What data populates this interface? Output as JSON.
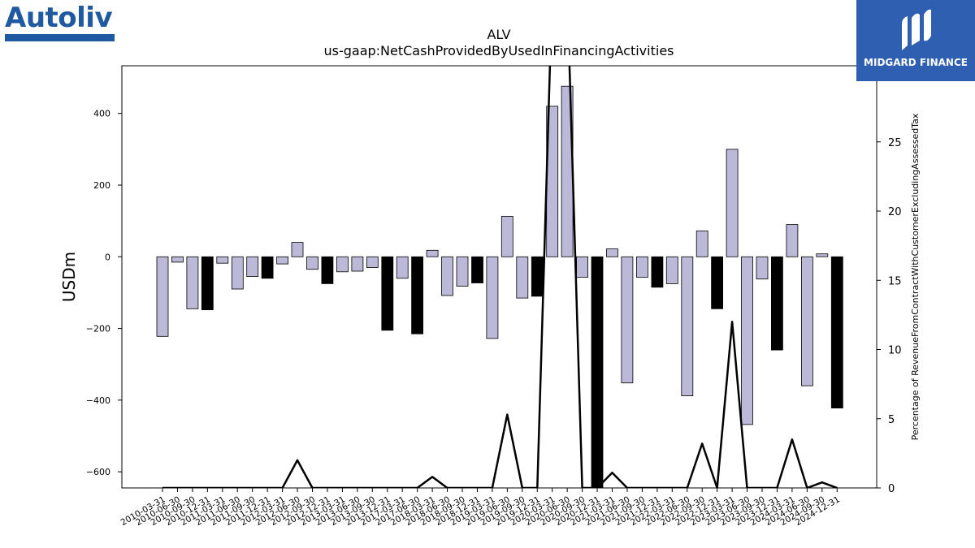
{
  "logos": {
    "left_text": "Autoliv",
    "right_text": "MIDGARD FINANCE",
    "left_color": "#1f5aa0",
    "right_bg": "#2f5fb0"
  },
  "chart_data": {
    "type": "bar",
    "title": "ALV",
    "subtitle": "us-gaap:NetCashProvidedByUsedInFinancingActivities",
    "ylabel": "USDm",
    "y2label": "Percentage of RevenueFromContractWithCustomerExcludingAssessedTax",
    "ylim": [
      -645,
      533
    ],
    "y2lim": [
      0,
      30.5
    ],
    "yticks": [
      -600,
      -400,
      -200,
      0,
      200,
      400
    ],
    "y2ticks": [
      0,
      5,
      10,
      15,
      20,
      25,
      30
    ],
    "colors": {
      "positive_quarter": "#bcb8d8",
      "q4": "#000000",
      "line": "#000000"
    },
    "categories": [
      "2010-03-31",
      "2010-06-30",
      "2010-09-30",
      "2010-12-31",
      "2011-03-31",
      "2011-06-30",
      "2011-09-30",
      "2011-12-31",
      "2012-03-31",
      "2012-06-30",
      "2012-09-30",
      "2012-12-31",
      "2013-03-31",
      "2013-06-30",
      "2013-09-30",
      "2013-12-31",
      "2017-03-31",
      "2017-06-30",
      "2018-03-31",
      "2018-06-30",
      "2018-09-30",
      "2018-12-31",
      "2019-03-31",
      "2019-06-30",
      "2019-09-30",
      "2019-12-31",
      "2020-03-31",
      "2020-06-30",
      "2020-09-30",
      "2020-12-31",
      "2021-03-31",
      "2021-06-30",
      "2021-09-30",
      "2021-12-31",
      "2022-03-31",
      "2022-06-30",
      "2022-09-30",
      "2022-12-31",
      "2023-03-31",
      "2023-06-30",
      "2023-09-30",
      "2023-12-31",
      "2024-03-31",
      "2024-06-30",
      "2024-09-30",
      "2024-12-31"
    ],
    "series": [
      {
        "type": "bar",
        "values": [
          -222,
          -15,
          -145,
          -148,
          -18,
          -90,
          -55,
          -60,
          -20,
          40,
          -35,
          -75,
          -42,
          -40,
          -30,
          -205,
          -60,
          -215,
          18,
          -108,
          -82,
          -73,
          -228,
          113,
          -115,
          -110,
          420,
          476,
          -57,
          -650,
          22,
          -352,
          -57,
          -85,
          -75,
          -388,
          72,
          -145,
          300,
          -468,
          -62,
          -260,
          90,
          -360,
          8,
          -422
        ],
        "fills": [
          "#bcb8d8",
          "#bcb8d8",
          "#bcb8d8",
          "#000000",
          "#bcb8d8",
          "#bcb8d8",
          "#bcb8d8",
          "#000000",
          "#bcb8d8",
          "#bcb8d8",
          "#bcb8d8",
          "#000000",
          "#bcb8d8",
          "#bcb8d8",
          "#bcb8d8",
          "#000000",
          "#bcb8d8",
          "#000000",
          "#bcb8d8",
          "#bcb8d8",
          "#bcb8d8",
          "#000000",
          "#bcb8d8",
          "#bcb8d8",
          "#bcb8d8",
          "#000000",
          "#bcb8d8",
          "#bcb8d8",
          "#bcb8d8",
          "#000000",
          "#bcb8d8",
          "#bcb8d8",
          "#bcb8d8",
          "#000000",
          "#bcb8d8",
          "#bcb8d8",
          "#bcb8d8",
          "#000000",
          "#bcb8d8",
          "#bcb8d8",
          "#bcb8d8",
          "#000000",
          "#bcb8d8",
          "#bcb8d8",
          "#bcb8d8",
          "#000000"
        ]
      },
      {
        "type": "line",
        "axis": "right",
        "values": [
          0,
          0,
          0,
          0,
          0,
          0,
          0,
          0,
          0,
          2.0,
          0,
          0,
          0,
          0,
          0,
          0,
          0,
          0,
          0.8,
          0,
          0,
          0,
          0,
          5.3,
          0,
          0,
          36,
          36,
          0,
          0,
          1.1,
          0,
          0,
          0,
          0,
          0,
          3.2,
          0,
          12.0,
          0,
          0,
          0,
          3.5,
          0,
          0.4,
          0
        ]
      }
    ]
  }
}
